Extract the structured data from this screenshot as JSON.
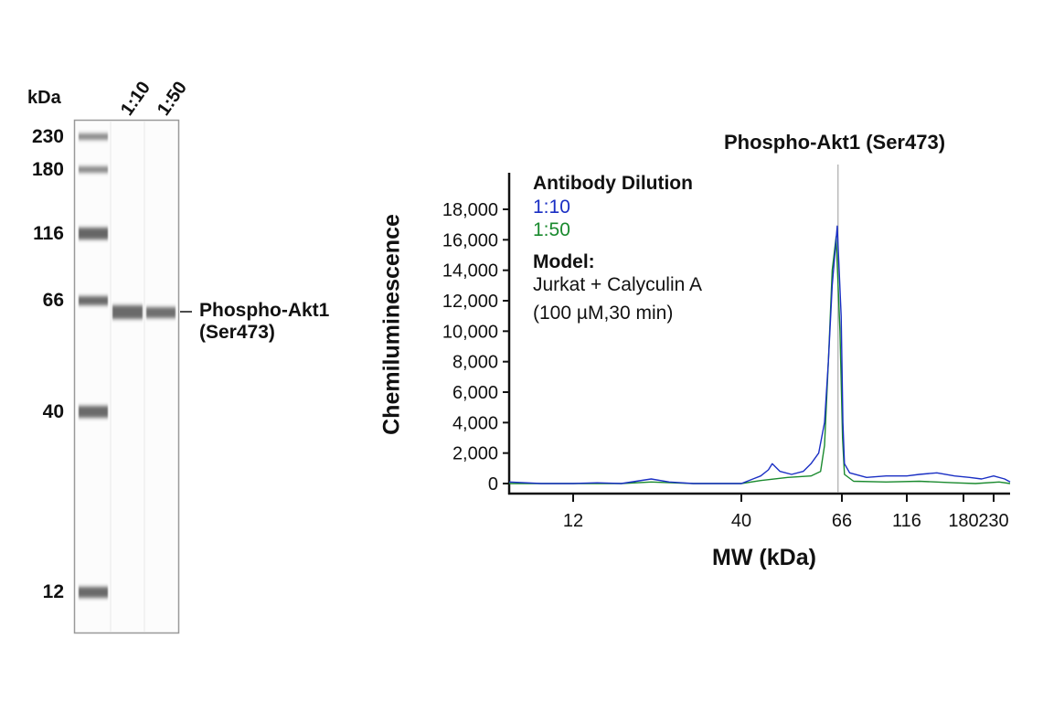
{
  "blot": {
    "unit_label": "kDa",
    "lane_labels": [
      "1:10",
      "1:50"
    ],
    "ladder": [
      "230",
      "180",
      "116",
      "66",
      "40",
      "12"
    ],
    "band_label_line1": "Phospho-Akt1",
    "band_label_line2": "(Ser473)"
  },
  "chart_data": {
    "type": "line",
    "title": "Phospho-Akt1 (Ser473)",
    "xlabel": "MW (kDa)",
    "ylabel": "Chemiluminescence",
    "xlim": [
      8,
      260
    ],
    "ylim": [
      0,
      20000
    ],
    "x_ticks": [
      "12",
      "40",
      "66",
      "116",
      "180",
      "230"
    ],
    "y_ticks": [
      "0",
      "2,000",
      "4,000",
      "6,000",
      "8,000",
      "10,000",
      "12,000",
      "14,000",
      "16,000",
      "18,000"
    ],
    "grid": false,
    "reference_line_x": 65,
    "legend": {
      "title": "Antibody Dilution",
      "model_title": "Model:",
      "model_line1": "Jurkat + Calyculin A",
      "model_line2": "(100 µM,30 min)",
      "placement": "top-left"
    },
    "series": [
      {
        "name": "1:10",
        "color": "#1a2fc4",
        "points": [
          [
            8,
            100
          ],
          [
            10,
            0
          ],
          [
            12,
            0
          ],
          [
            16,
            50
          ],
          [
            20,
            0
          ],
          [
            25,
            300
          ],
          [
            28,
            100
          ],
          [
            32,
            0
          ],
          [
            40,
            0
          ],
          [
            43,
            300
          ],
          [
            45,
            500
          ],
          [
            47,
            900
          ],
          [
            48,
            1300
          ],
          [
            50,
            800
          ],
          [
            53,
            600
          ],
          [
            56,
            800
          ],
          [
            58,
            1300
          ],
          [
            60,
            2000
          ],
          [
            61.5,
            4000
          ],
          [
            62.5,
            8000
          ],
          [
            63.5,
            13000
          ],
          [
            64.8,
            16900
          ],
          [
            65.8,
            11000
          ],
          [
            66.8,
            4000
          ],
          [
            68,
            1300
          ],
          [
            72,
            700
          ],
          [
            85,
            400
          ],
          [
            100,
            500
          ],
          [
            116,
            500
          ],
          [
            130,
            600
          ],
          [
            150,
            700
          ],
          [
            170,
            500
          ],
          [
            190,
            400
          ],
          [
            210,
            300
          ],
          [
            230,
            500
          ],
          [
            250,
            300
          ],
          [
            260,
            100
          ]
        ]
      },
      {
        "name": "1:50",
        "color": "#1a8a2e",
        "points": [
          [
            8,
            0
          ],
          [
            20,
            0
          ],
          [
            25,
            100
          ],
          [
            32,
            0
          ],
          [
            40,
            0
          ],
          [
            45,
            200
          ],
          [
            52,
            400
          ],
          [
            58,
            500
          ],
          [
            60.5,
            800
          ],
          [
            61.5,
            2500
          ],
          [
            62.5,
            8000
          ],
          [
            63.5,
            14000
          ],
          [
            64.5,
            16200
          ],
          [
            65.5,
            10000
          ],
          [
            66.5,
            3000
          ],
          [
            68,
            600
          ],
          [
            75,
            150
          ],
          [
            100,
            100
          ],
          [
            130,
            150
          ],
          [
            170,
            50
          ],
          [
            200,
            0
          ],
          [
            240,
            100
          ],
          [
            260,
            0
          ]
        ]
      }
    ]
  }
}
